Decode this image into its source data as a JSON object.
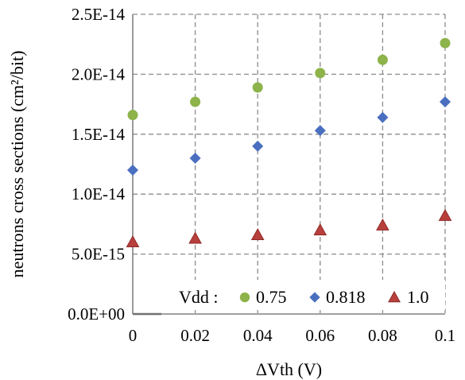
{
  "chart_data": {
    "type": "scatter",
    "xlabel": "ΔVth (V)",
    "ylabel": "neutrons cross sections (cm²/bit)",
    "xlim": [
      0,
      0.1
    ],
    "ylim": [
      0,
      2.5e-14
    ],
    "x_ticks": [
      0,
      0.02,
      0.04,
      0.06,
      0.08,
      0.1
    ],
    "x_tick_labels": [
      "0",
      "0.02",
      "0.04",
      "0.06",
      "0.08",
      "0.1"
    ],
    "y_ticks": [
      0,
      5e-15,
      1e-14,
      1.5e-14,
      2e-14,
      2.5e-14
    ],
    "y_tick_labels": [
      "0.0E+00",
      "5.0E-15",
      "1.0E-14",
      "1.5E-14",
      "2.0E-14",
      "2.5E-14"
    ],
    "grid": true,
    "legend": {
      "placement": "bottom-right",
      "prefix": "Vdd :"
    },
    "series": [
      {
        "name": "0.75",
        "marker": "circle",
        "color": "#8DB34A",
        "x": [
          0,
          0.02,
          0.04,
          0.06,
          0.08,
          0.1
        ],
        "y": [
          1.66e-14,
          1.77e-14,
          1.89e-14,
          2.01e-14,
          2.12e-14,
          2.26e-14
        ]
      },
      {
        "name": "0.818",
        "marker": "diamond",
        "color": "#4A6FBF",
        "x": [
          0,
          0.02,
          0.04,
          0.06,
          0.08,
          0.1
        ],
        "y": [
          1.2e-14,
          1.3e-14,
          1.4e-14,
          1.53e-14,
          1.64e-14,
          1.77e-14
        ]
      },
      {
        "name": "1.0",
        "marker": "triangle",
        "color": "#B8403C",
        "x": [
          0,
          0.02,
          0.04,
          0.06,
          0.08,
          0.1
        ],
        "y": [
          6e-15,
          6.3e-15,
          6.6e-15,
          7e-15,
          7.4e-15,
          8.2e-15
        ]
      }
    ]
  }
}
